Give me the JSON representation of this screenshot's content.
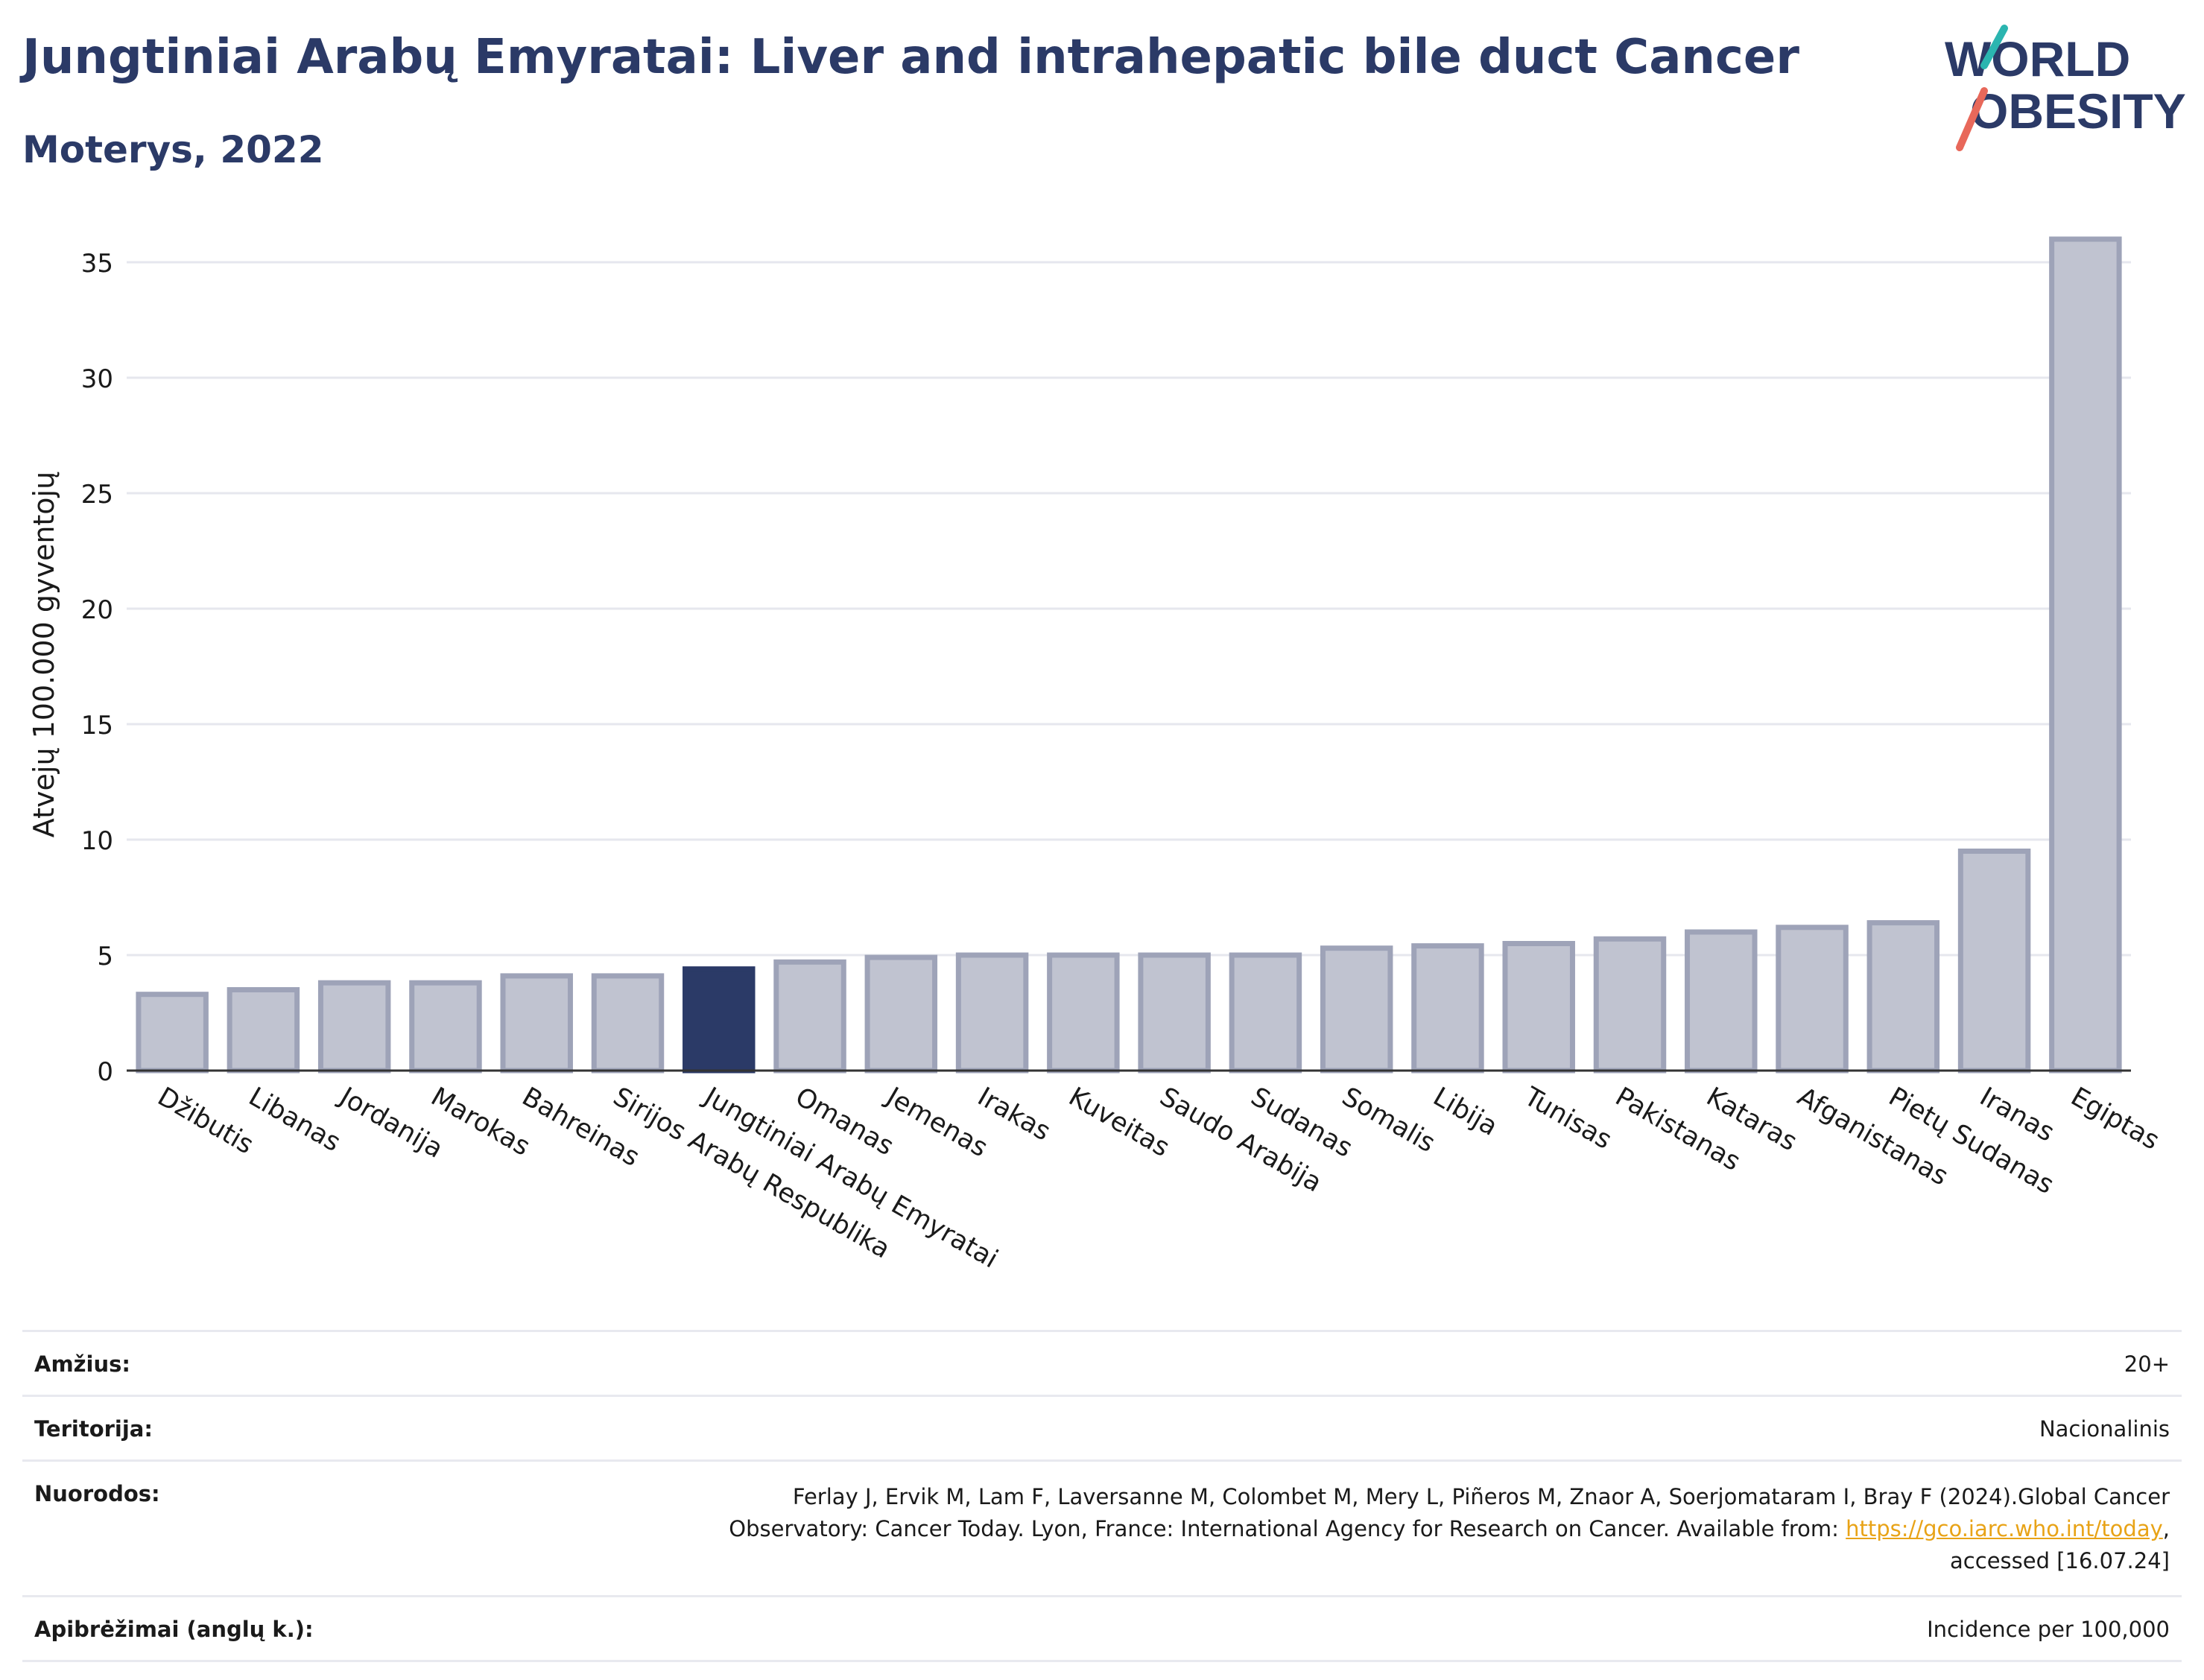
{
  "header": {
    "title": "Jungtiniai Arabų Emyratai: Liver and intrahepatic bile duct Cancer",
    "subtitle": "Moterys, 2022"
  },
  "logo": {
    "line1": "WORLD",
    "line2": "OBESITY"
  },
  "chart_data": {
    "type": "bar",
    "title": "Jungtiniai Arabų Emyratai: Liver and intrahepatic bile duct Cancer",
    "subtitle": "Moterys, 2022",
    "xlabel": "",
    "ylabel": "Atvejų 100.000 gyventojų",
    "ylim": [
      0,
      37
    ],
    "yticks": [
      0,
      5,
      10,
      15,
      20,
      25,
      30,
      35
    ],
    "grid": true,
    "highlight": "Jungtiniai Arabų Emyratai",
    "categories": [
      "Džibutis",
      "Libanas",
      "Jordanija",
      "Marokas",
      "Bahreinas",
      "Sirijos Arabų Respublika",
      "Jungtiniai Arabų Emyratai",
      "Omanas",
      "Jemenas",
      "Irakas",
      "Kuveitas",
      "Saudo Arabija",
      "Sudanas",
      "Somalis",
      "Libija",
      "Tunisas",
      "Pakistanas",
      "Kataras",
      "Afganistanas",
      "Pietų Sudanas",
      "Iranas",
      "Egiptas"
    ],
    "values": [
      3.3,
      3.5,
      3.8,
      3.8,
      4.1,
      4.1,
      4.4,
      4.7,
      4.9,
      5.0,
      5.0,
      5.0,
      5.0,
      5.3,
      5.4,
      5.5,
      5.7,
      6.0,
      6.2,
      6.4,
      9.5,
      36.0
    ],
    "colors": {
      "bar": "#c0c3d0",
      "bar_edge": "#9ea3b8",
      "highlight": "#2b3a67",
      "grid": "#e6e7ee"
    }
  },
  "meta": {
    "rows": [
      {
        "label": "Amžius:",
        "value": "20+"
      },
      {
        "label": "Teritorija:",
        "value": "Nacionalinis"
      },
      {
        "label": "Nuorodos:",
        "value_line1": "Ferlay J, Ervik M, Lam F, Laversanne M, Colombet M, Mery L, Piñeros M, Znaor A, Soerjomataram I, Bray F (2024).Global Cancer",
        "value_line2": "Observatory: Cancer Today. Lyon, France: International Agency for Research on Cancer. Available from: ",
        "link": "https://gco.iarc.who.int/today",
        "value_line2_end": ",",
        "value_line3": "accessed [16.07.24]"
      },
      {
        "label": "Apibrėžimai (anglų k.):",
        "value": "Incidence per 100,000"
      }
    ]
  }
}
